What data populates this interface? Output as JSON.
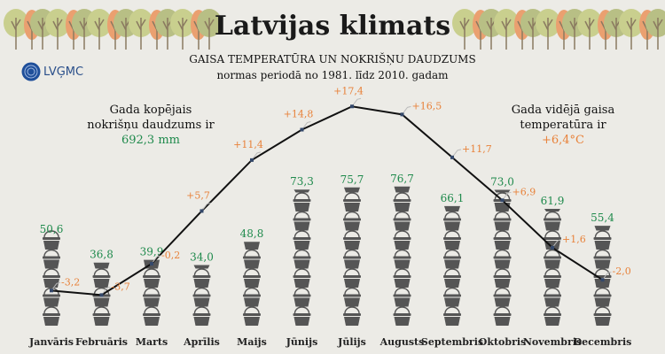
{
  "header": {
    "title": "Latvijas klimats",
    "subtitle_line1": "GAISA TEMPERATŪRA UN NOKRIŠŅU DAUDZUMS",
    "subtitle_line2": "normas periodā no 1981. līdz 2010. gadam",
    "logo_text": "LVĢMC"
  },
  "annual_precip": {
    "line1": "Gada kopējais",
    "line2": "nokrišņu daudzums ir",
    "value": "692,3 mm"
  },
  "annual_temp": {
    "line1": "Gada vidējā gaisa",
    "line2": "temperatūra ir",
    "value": "+6,4°C"
  },
  "colors": {
    "background": "#ecebe6",
    "precip": "#1f8a4c",
    "temperature": "#e8823a",
    "bucket": "#555555",
    "line": "#111111"
  },
  "chart_data": {
    "type": "line+pictogram",
    "categories": [
      "Janvāris",
      "Februāris",
      "Marts",
      "Aprīlis",
      "Maijs",
      "Jūnijs",
      "Jūlijs",
      "Augusts",
      "Septembris",
      "Oktobris",
      "Novembris",
      "Decembris"
    ],
    "series": [
      {
        "kind": "pictogram",
        "icon": "bucket-icon",
        "values": [
          50.6,
          36.8,
          39.9,
          34.0,
          48.8,
          73.3,
          75.7,
          76.7,
          66.1,
          73.0,
          61.9,
          55.4
        ],
        "labels": [
          "50,6",
          "36,8",
          "39,9",
          "34,0",
          "48,8",
          "73,3",
          "75,7",
          "76,7",
          "66,1",
          "73,0",
          "61,9",
          "55,4"
        ]
      },
      {
        "kind": "line",
        "values": [
          -3.2,
          -3.7,
          -0.2,
          5.7,
          11.4,
          14.8,
          17.4,
          16.5,
          11.7,
          6.9,
          1.6,
          -2.0
        ],
        "labels": [
          "-3,2",
          "-3,7",
          "-0,2",
          "+5,7",
          "+11,4",
          "+14,8",
          "+17,4",
          "+16,5",
          "+11,7",
          "+6,9",
          "+1,6",
          "-2,0"
        ]
      }
    ]
  }
}
